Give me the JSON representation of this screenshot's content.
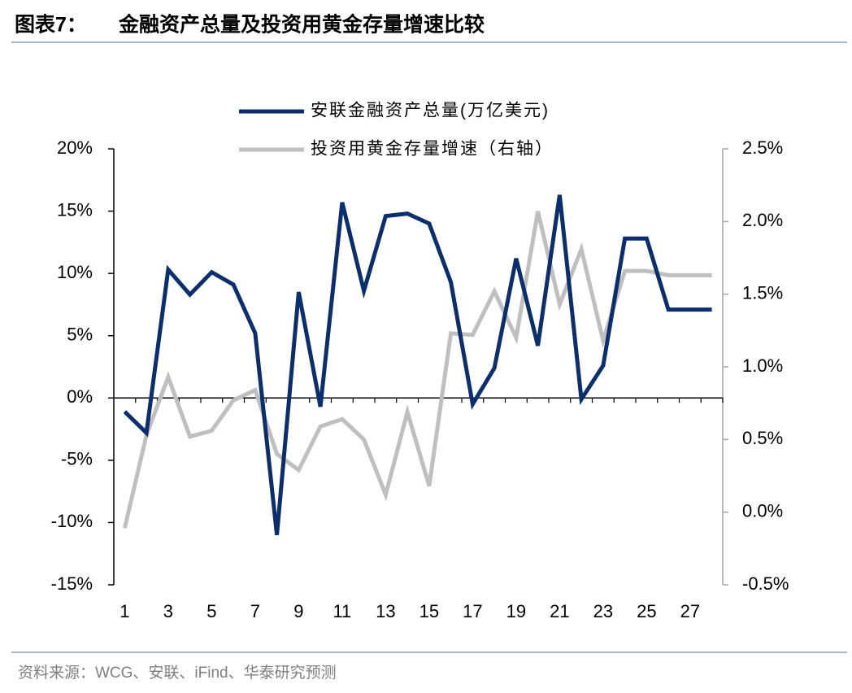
{
  "figure_label": "图表7：",
  "source": "资料来源：WCG、安联、iFind、华泰研究预测",
  "chart_data": {
    "type": "line",
    "title": "金融资产总量及投资用黄金存量增速比较",
    "categories": [
      "1",
      null,
      "3",
      null,
      "5",
      null,
      "7",
      null,
      "9",
      null,
      "11",
      null,
      "13",
      null,
      "15",
      null,
      "17",
      null,
      "19",
      null,
      "21",
      null,
      "23",
      null,
      "25",
      null,
      "27",
      null
    ],
    "series": [
      {
        "name": "安联金融资产总量(万亿美元)",
        "color": "#0b2f6e",
        "axis": "y",
        "values": [
          -1.1,
          -2.8,
          10.3,
          8.3,
          10.1,
          9.1,
          5.2,
          -11.0,
          8.5,
          -0.7,
          15.7,
          8.6,
          14.6,
          14.8,
          14.0,
          9.3,
          -0.5,
          2.4,
          11.2,
          4.2,
          16.3,
          -0.1,
          2.6,
          12.8,
          12.8,
          7.1,
          7.1,
          7.1
        ]
      },
      {
        "name": "投资用黄金存量增速（右轴）",
        "color": "#bfbfbf",
        "axis": "y2",
        "values": [
          -0.11,
          0.53,
          0.93,
          0.52,
          0.56,
          0.77,
          0.84,
          0.4,
          0.29,
          0.59,
          0.64,
          0.5,
          0.12,
          0.69,
          0.18,
          1.23,
          1.22,
          1.52,
          1.2,
          2.07,
          1.43,
          1.81,
          1.18,
          1.66,
          1.66,
          1.63,
          1.63,
          1.63
        ]
      }
    ],
    "ylim": [
      -15,
      20
    ],
    "yticks": [
      {
        "value": -15,
        "label": "-15%"
      },
      {
        "value": -10,
        "label": "-10%"
      },
      {
        "value": -5,
        "label": "-5%"
      },
      {
        "value": 0,
        "label": "0%"
      },
      {
        "value": 5,
        "label": "5%"
      },
      {
        "value": 10,
        "label": "10%"
      },
      {
        "value": 15,
        "label": "15%"
      },
      {
        "value": 20,
        "label": "20%"
      }
    ],
    "y2lim": [
      -0.5,
      2.5
    ],
    "y2ticks": [
      {
        "value": -0.5,
        "label": "-0.5%"
      },
      {
        "value": 0.0,
        "label": "0.0%"
      },
      {
        "value": 0.5,
        "label": "0.5%"
      },
      {
        "value": 1.0,
        "label": "1.0%"
      },
      {
        "value": 1.5,
        "label": "1.5%"
      },
      {
        "value": 2.0,
        "label": "2.0%"
      },
      {
        "value": 2.5,
        "label": "2.5%"
      }
    ],
    "legend": "top",
    "grid": false
  }
}
